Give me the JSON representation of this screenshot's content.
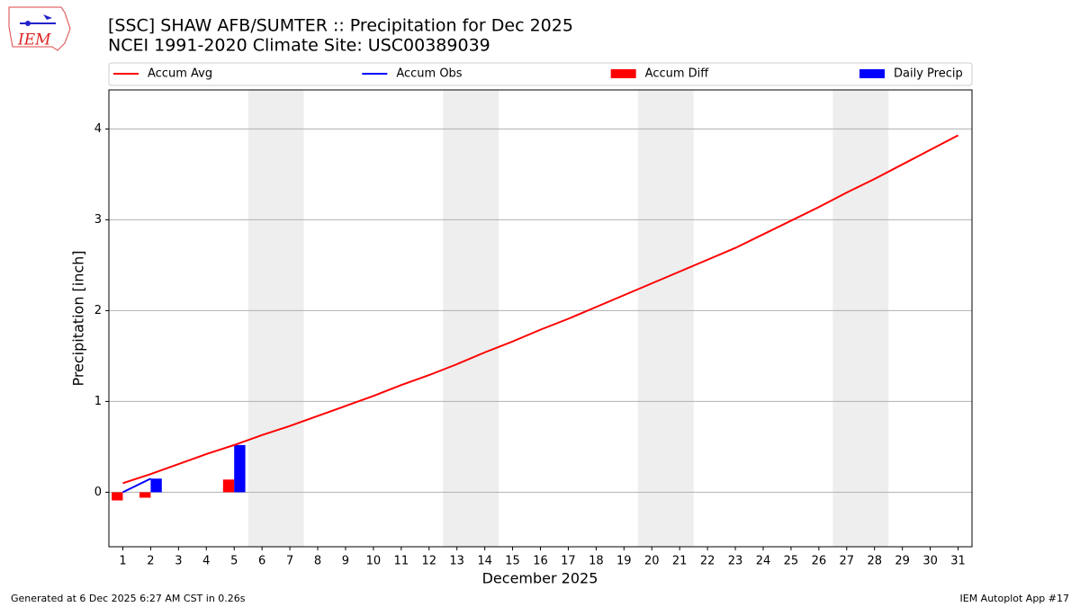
{
  "chart_data": {
    "type": "combo",
    "title": "[SSC] SHAW AFB/SUMTER :: Precipitation for Dec 2025",
    "subtitle": "NCEI 1991-2020 Climate Site: USC00389039",
    "logo_text": "IEM",
    "x_label": "December 2025",
    "y_label": "Precipitation [inch]",
    "x": [
      1,
      2,
      3,
      4,
      5,
      6,
      7,
      8,
      9,
      10,
      11,
      12,
      13,
      14,
      15,
      16,
      17,
      18,
      19,
      20,
      21,
      22,
      23,
      24,
      25,
      26,
      27,
      28,
      29,
      30,
      31
    ],
    "xlim": [
      0.5,
      31.5
    ],
    "xticks": [
      1,
      2,
      3,
      4,
      5,
      6,
      7,
      8,
      9,
      10,
      11,
      12,
      13,
      14,
      15,
      16,
      17,
      18,
      19,
      20,
      21,
      22,
      23,
      24,
      25,
      26,
      27,
      28,
      29,
      30,
      31
    ],
    "ylim": [
      -0.6,
      4.43
    ],
    "yticks": [
      0,
      1,
      2,
      3,
      4
    ],
    "grid": "y",
    "legend": "top",
    "shaded_spans": [
      [
        5.5,
        7.5
      ],
      [
        12.5,
        14.5
      ],
      [
        19.5,
        21.5
      ],
      [
        26.5,
        28.5
      ]
    ],
    "shade_color": "#eeeeee",
    "series": [
      {
        "name": "Accum Avg",
        "mark": "line",
        "color": "#ff0000",
        "values": [
          0.1,
          0.2,
          0.31,
          0.42,
          0.52,
          0.63,
          0.73,
          0.84,
          0.95,
          1.06,
          1.18,
          1.29,
          1.41,
          1.54,
          1.66,
          1.79,
          1.91,
          2.04,
          2.17,
          2.3,
          2.43,
          2.56,
          2.69,
          2.84,
          2.99,
          3.14,
          3.3,
          3.45,
          3.61,
          3.77,
          3.93
        ]
      },
      {
        "name": "Accum Obs",
        "mark": "line",
        "color": "#0000ff",
        "values": [
          0.0,
          0.15,
          null,
          null,
          null,
          null,
          null,
          null,
          null,
          null,
          null,
          null,
          null,
          null,
          null,
          null,
          null,
          null,
          null,
          null,
          null,
          null,
          null,
          null,
          null,
          null,
          null,
          null,
          null,
          null,
          null
        ]
      },
      {
        "name": "Accum Diff",
        "mark": "bar",
        "color": "#ff0000",
        "values": [
          -0.09,
          -0.06,
          null,
          null,
          0.14,
          null,
          null,
          null,
          null,
          null,
          null,
          null,
          null,
          null,
          null,
          null,
          null,
          null,
          null,
          null,
          null,
          null,
          null,
          null,
          null,
          null,
          null,
          null,
          null,
          null,
          null
        ]
      },
      {
        "name": "Daily Precip",
        "mark": "bar",
        "color": "#0000ff",
        "values": [
          null,
          0.15,
          null,
          null,
          0.52,
          null,
          null,
          null,
          null,
          null,
          null,
          null,
          null,
          null,
          null,
          null,
          null,
          null,
          null,
          null,
          null,
          null,
          null,
          null,
          null,
          null,
          null,
          null,
          null,
          null,
          null
        ]
      }
    ],
    "footer_left": "Generated at 6 Dec 2025 6:27 AM CST in 0.26s",
    "footer_right": "IEM Autoplot App #17"
  }
}
